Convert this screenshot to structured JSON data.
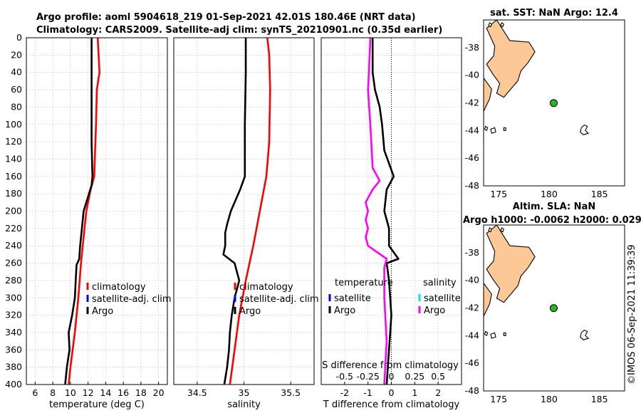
{
  "header": {
    "title_line1": "Argo profile: aoml 5904618_219 01-Sep-2021 42.01S 180.46E (NRT data)",
    "title_line2": "Climatology: CARS2009. Satellite-adj clim: synTS_20210901.nc (0.35d earlier)"
  },
  "credit": "©IMOS 06-Sep-2021 11:39:39",
  "colors": {
    "climatology": "#ff0000",
    "satellite": "#0000ff",
    "argo": "#000000",
    "sat_s": "#00e5ee",
    "argo_s": "#ff00ff",
    "land": "#fcc896",
    "float": "#22bb22"
  },
  "chart_data": [
    {
      "type": "line",
      "id": "temperature",
      "xlabel": "temperature (deg C)",
      "ylabel": "",
      "xlim": [
        5,
        21
      ],
      "ylim": [
        0,
        400
      ],
      "xticks": [
        6,
        8,
        10,
        12,
        14,
        16,
        18,
        20
      ],
      "yticks": [
        0,
        20,
        40,
        60,
        80,
        100,
        120,
        140,
        160,
        180,
        200,
        220,
        240,
        260,
        280,
        300,
        320,
        340,
        360,
        380,
        400
      ],
      "legend": [
        "climatology",
        "satellite-adj. clim",
        "Argo"
      ],
      "series": [
        {
          "name": "climatology",
          "color": "#ff0000",
          "depth": [
            0,
            20,
            40,
            60,
            100,
            160,
            175,
            200,
            230,
            260,
            300,
            340,
            380,
            400
          ],
          "values": [
            13.1,
            13.2,
            13.3,
            13.0,
            12.9,
            12.7,
            12.3,
            11.8,
            11.5,
            11.2,
            10.9,
            10.5,
            10.0,
            9.8
          ]
        },
        {
          "name": "Argo",
          "color": "#000000",
          "depth": [
            0,
            40,
            80,
            120,
            160,
            170,
            180,
            190,
            200,
            220,
            240,
            255,
            262,
            280,
            300,
            320,
            340,
            360,
            380,
            400
          ],
          "values": [
            12.4,
            12.4,
            12.4,
            12.4,
            12.5,
            12.4,
            12.1,
            11.8,
            11.5,
            11.3,
            11.1,
            11.0,
            10.7,
            10.6,
            10.5,
            10.2,
            9.8,
            9.9,
            9.6,
            9.4
          ]
        }
      ]
    },
    {
      "type": "line",
      "id": "salinity",
      "xlabel": "salinity",
      "ylabel": "",
      "xlim": [
        34.25,
        35.75
      ],
      "ylim": [
        0,
        400
      ],
      "xticks": [
        34.5,
        35,
        35.5
      ],
      "xtick_labels": [
        "34.5",
        "35",
        "35.5"
      ],
      "legend": [
        "climatology",
        "satellite-adj. clim",
        "Argo"
      ],
      "series": [
        {
          "name": "climatology",
          "color": "#ff0000",
          "depth": [
            0,
            20,
            60,
            120,
            160,
            200,
            240,
            280,
            320,
            360,
            400
          ],
          "values": [
            35.25,
            35.27,
            35.28,
            35.27,
            35.24,
            35.17,
            35.1,
            35.02,
            34.95,
            34.9,
            34.85
          ]
        },
        {
          "name": "Argo",
          "color": "#000000",
          "depth": [
            0,
            40,
            100,
            160,
            175,
            185,
            200,
            215,
            225,
            240,
            250,
            260,
            280,
            300,
            320,
            340,
            360,
            380,
            400
          ],
          "values": [
            35.02,
            35.02,
            35.01,
            35.01,
            34.96,
            34.92,
            34.86,
            34.82,
            34.8,
            34.8,
            34.78,
            34.9,
            34.95,
            34.9,
            34.87,
            34.85,
            34.84,
            34.82,
            34.79
          ]
        }
      ]
    },
    {
      "type": "line",
      "id": "difference",
      "xlabel": "T difference from climatology",
      "x2label": "S difference from climatology",
      "xlim": [
        -3,
        3
      ],
      "ylim": [
        0,
        400
      ],
      "xticks": [
        -2,
        -1,
        0,
        1,
        2
      ],
      "xtick_labels": [
        "-2",
        "-1",
        "0",
        "1",
        "2"
      ],
      "x2ticks": [
        -0.5,
        -0.25,
        0,
        0.25,
        0.5
      ],
      "x2tick_labels": [
        "-0.5",
        "-0.25",
        "0",
        "0.25",
        "0.5"
      ],
      "x2_scale": 4,
      "legend_left_title": "temperature",
      "legend_right_title": "salinity",
      "legend_left": [
        "satellite",
        "Argo"
      ],
      "legend_right": [
        "satellite",
        "Argo"
      ],
      "series": [
        {
          "name": "T Argo",
          "color": "#000000",
          "depth": [
            0,
            40,
            60,
            80,
            100,
            130,
            160,
            175,
            200,
            220,
            240,
            255,
            260,
            280,
            320,
            360,
            400
          ],
          "values": [
            -0.8,
            -0.8,
            -0.7,
            -0.5,
            -0.4,
            -0.3,
            0.1,
            -0.2,
            -0.3,
            -0.1,
            -0.1,
            0.3,
            -0.2,
            -0.1,
            0.0,
            -0.1,
            -0.2
          ]
        },
        {
          "name": "S Argo",
          "color": "#ff00ff",
          "depth": [
            0,
            40,
            60,
            100,
            150,
            165,
            175,
            190,
            200,
            210,
            220,
            230,
            240,
            255,
            265,
            300,
            350,
            400
          ],
          "values": [
            -0.9,
            -0.96,
            -1.0,
            -0.9,
            -0.8,
            -0.5,
            -0.8,
            -1.1,
            -1.0,
            -1.1,
            -1.0,
            -1.1,
            -1.0,
            -0.2,
            -0.3,
            -0.3,
            -0.2,
            -0.3
          ]
        }
      ]
    },
    {
      "type": "scatter",
      "id": "map_sst",
      "title": "sat. SST: NaN Argo: 12.4",
      "xlim": [
        173.5,
        187.5
      ],
      "ylim": [
        -48,
        -36
      ],
      "xticks": [
        175,
        180,
        185
      ],
      "yticks": [
        -38,
        -40,
        -42,
        -44,
        -46,
        -48
      ],
      "points": [
        {
          "lon": 180.46,
          "lat": -42.01
        }
      ]
    },
    {
      "type": "scatter",
      "id": "map_sla",
      "title": "Altim. SLA: NaN",
      "subtitle": "Argo h1000: -0.0062 h2000: 0.029",
      "xlim": [
        173.5,
        187.5
      ],
      "ylim": [
        -48,
        -36
      ],
      "xticks": [
        175,
        180,
        185
      ],
      "yticks": [
        -38,
        -40,
        -42,
        -44,
        -46,
        -48
      ],
      "points": [
        {
          "lon": 180.46,
          "lat": -42.01
        }
      ]
    }
  ]
}
